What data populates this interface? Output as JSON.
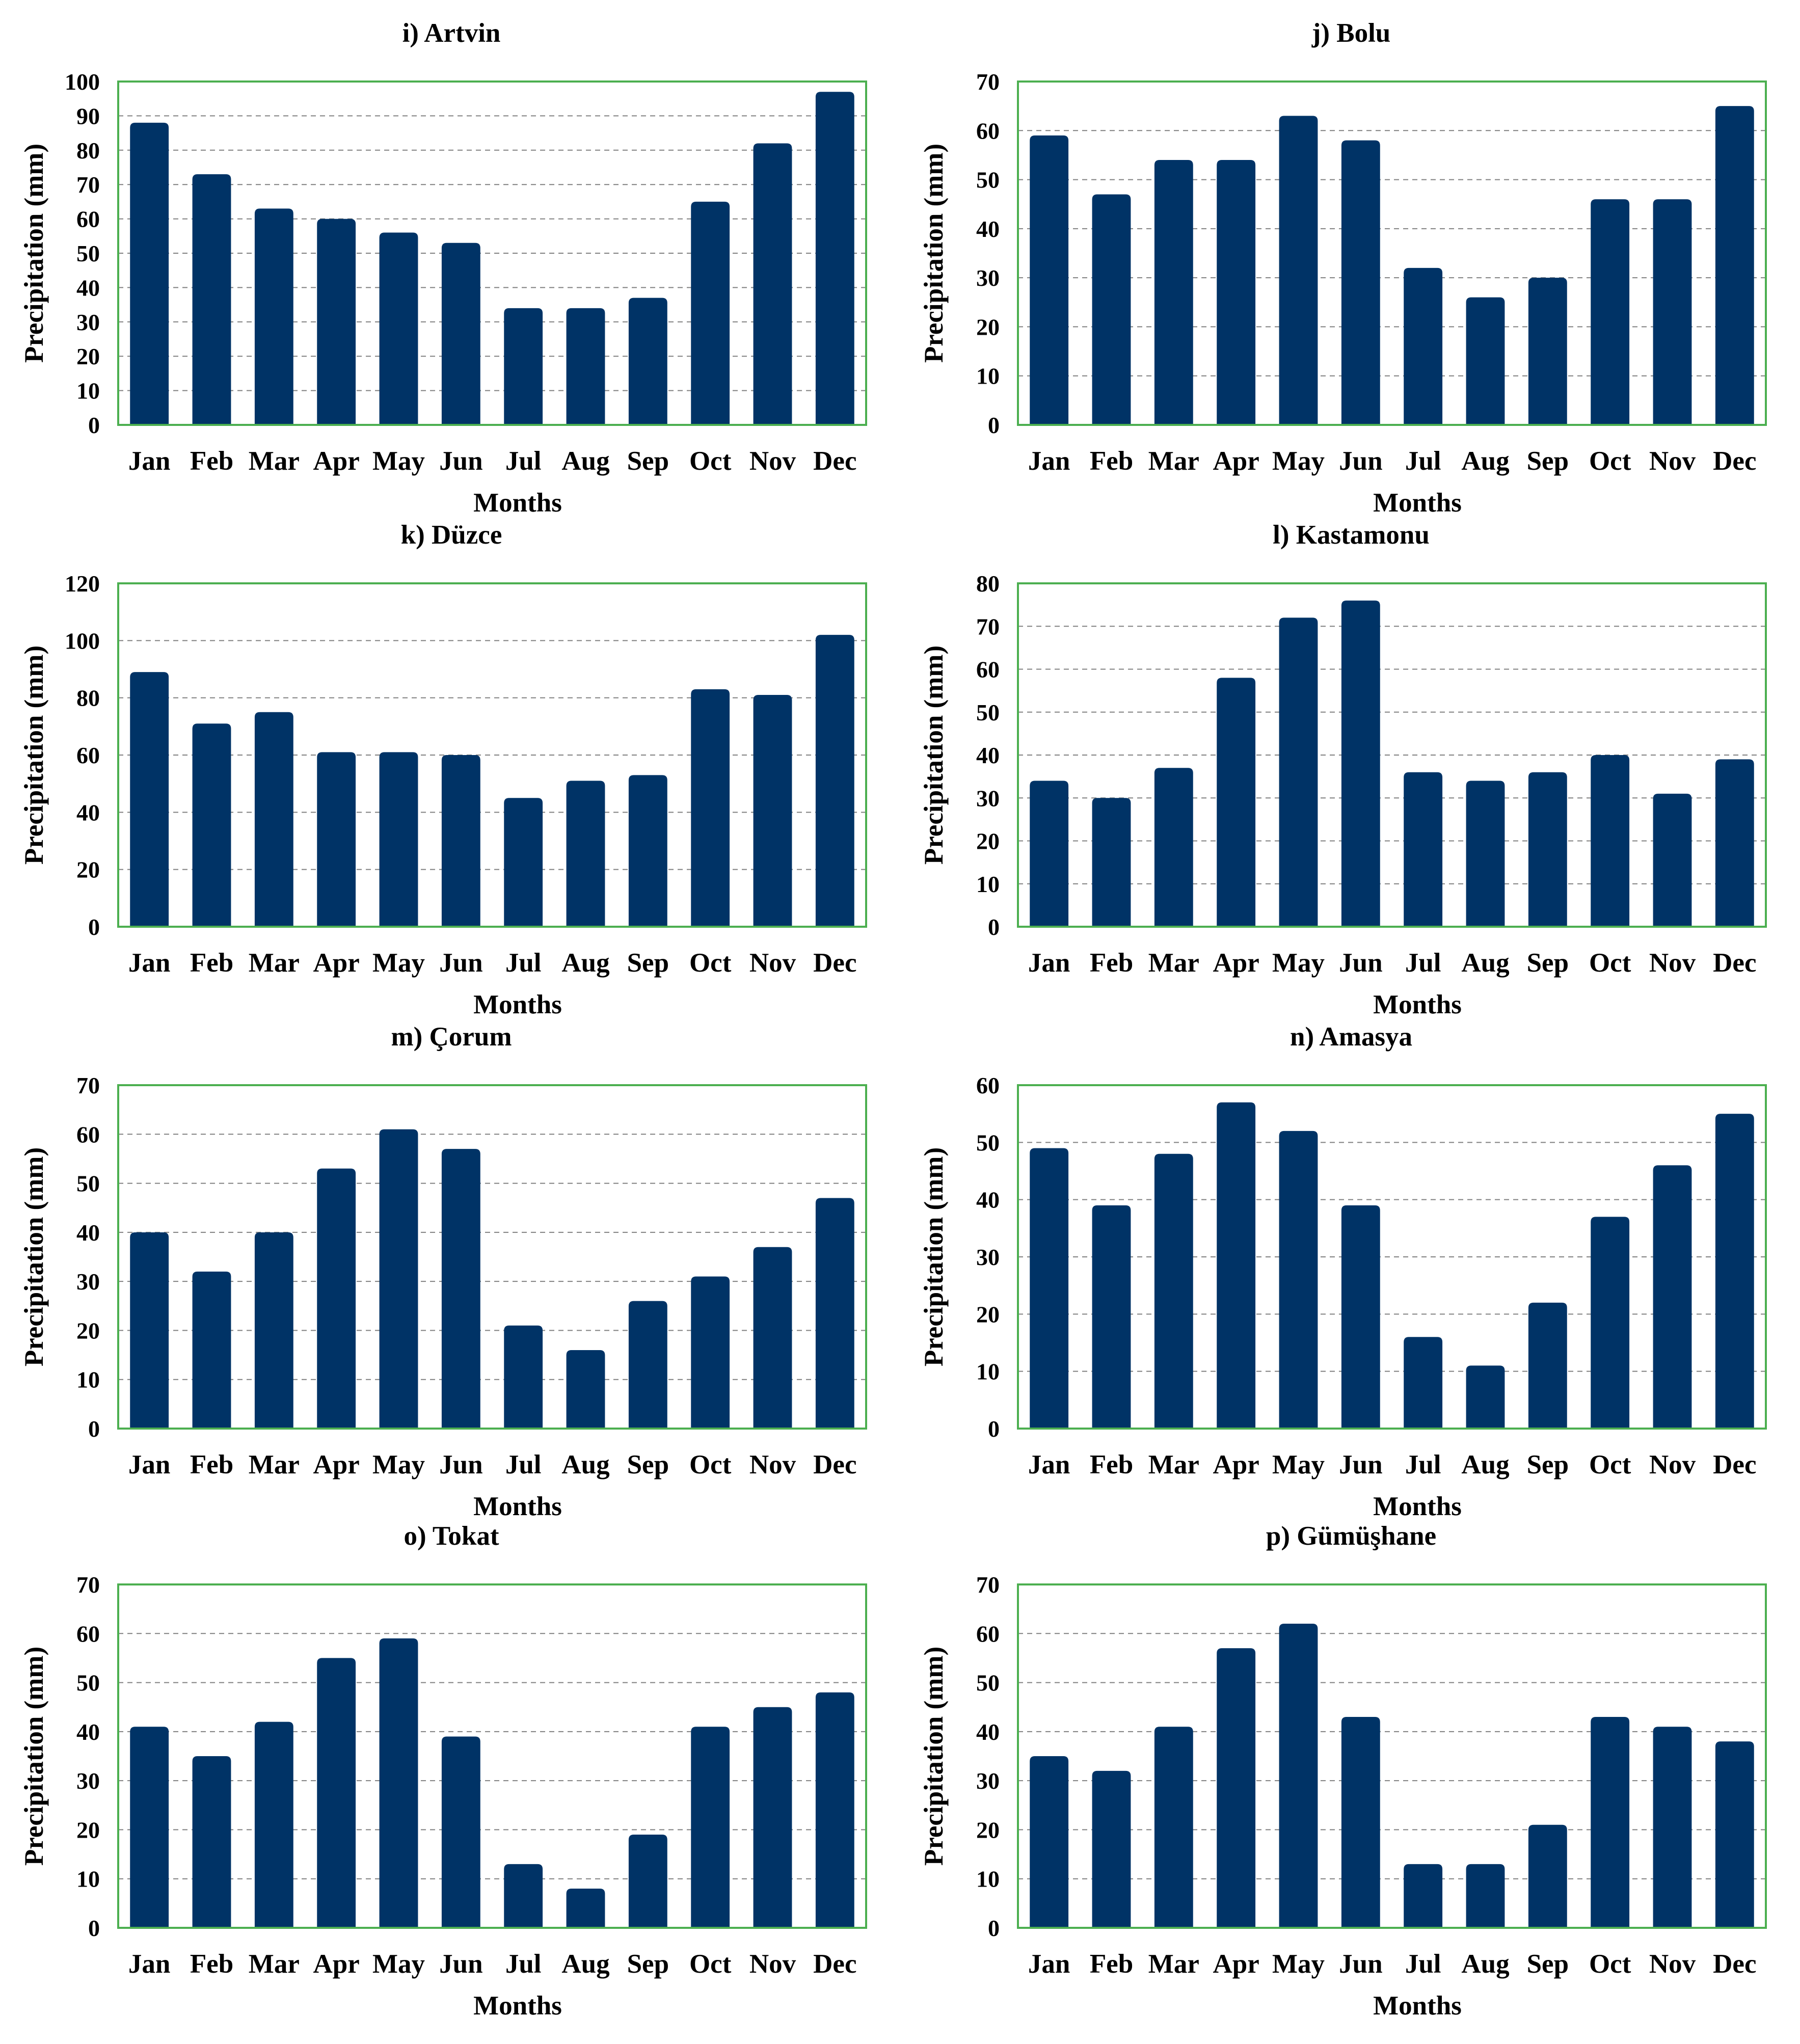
{
  "colors": {
    "bar": "#003366",
    "frame": "#4caf50",
    "grid": "#808080"
  },
  "chart_data": [
    {
      "type": "bar",
      "title": "i) Artvin",
      "xlabel": "Months",
      "ylabel": "Precipitation  (mm)",
      "categories": [
        "Jan",
        "Feb",
        "Mar",
        "Apr",
        "May",
        "Jun",
        "Jul",
        "Aug",
        "Sep",
        "Oct",
        "Nov",
        "Dec"
      ],
      "values": [
        88,
        73,
        63,
        60,
        56,
        53,
        34,
        34,
        37,
        65,
        82,
        97
      ],
      "ylim": [
        0,
        100
      ],
      "ystep": 10,
      "grid": true
    },
    {
      "type": "bar",
      "title": "j) Bolu",
      "xlabel": "Months",
      "ylabel": "Precipitation  (mm)",
      "categories": [
        "Jan",
        "Feb",
        "Mar",
        "Apr",
        "May",
        "Jun",
        "Jul",
        "Aug",
        "Sep",
        "Oct",
        "Nov",
        "Dec"
      ],
      "values": [
        59,
        47,
        54,
        54,
        63,
        58,
        32,
        26,
        30,
        46,
        46,
        65
      ],
      "ylim": [
        0,
        70
      ],
      "ystep": 10,
      "grid": true
    },
    {
      "type": "bar",
      "title": "k) Düzce",
      "xlabel": "Months",
      "ylabel": "Precipitation  (mm)",
      "categories": [
        "Jan",
        "Feb",
        "Mar",
        "Apr",
        "May",
        "Jun",
        "Jul",
        "Aug",
        "Sep",
        "Oct",
        "Nov",
        "Dec"
      ],
      "values": [
        89,
        71,
        75,
        61,
        61,
        60,
        45,
        51,
        53,
        83,
        81,
        102
      ],
      "ylim": [
        0,
        120
      ],
      "ystep": 20,
      "grid": true
    },
    {
      "type": "bar",
      "title": "l) Kastamonu",
      "xlabel": "Months",
      "ylabel": "Precipitation  (mm)",
      "categories": [
        "Jan",
        "Feb",
        "Mar",
        "Apr",
        "May",
        "Jun",
        "Jul",
        "Aug",
        "Sep",
        "Oct",
        "Nov",
        "Dec"
      ],
      "values": [
        34,
        30,
        37,
        58,
        72,
        76,
        36,
        34,
        36,
        40,
        31,
        39
      ],
      "ylim": [
        0,
        80
      ],
      "ystep": 10,
      "grid": true
    },
    {
      "type": "bar",
      "title": "m) Çorum",
      "xlabel": "Months",
      "ylabel": "Precipitation  (mm)",
      "categories": [
        "Jan",
        "Feb",
        "Mar",
        "Apr",
        "May",
        "Jun",
        "Jul",
        "Aug",
        "Sep",
        "Oct",
        "Nov",
        "Dec"
      ],
      "values": [
        40,
        32,
        40,
        53,
        61,
        57,
        21,
        16,
        26,
        31,
        37,
        47
      ],
      "ylim": [
        0,
        70
      ],
      "ystep": 10,
      "grid": true
    },
    {
      "type": "bar",
      "title": "n) Amasya",
      "xlabel": "Months",
      "ylabel": "Precipitation  (mm)",
      "categories": [
        "Jan",
        "Feb",
        "Mar",
        "Apr",
        "May",
        "Jun",
        "Jul",
        "Aug",
        "Sep",
        "Oct",
        "Nov",
        "Dec"
      ],
      "values": [
        49,
        39,
        48,
        57,
        52,
        39,
        16,
        11,
        22,
        37,
        46,
        55
      ],
      "ylim": [
        0,
        60
      ],
      "ystep": 10,
      "grid": true
    },
    {
      "type": "bar",
      "title": "o) Tokat",
      "xlabel": "Months",
      "ylabel": "Precipitation  (mm)",
      "categories": [
        "Jan",
        "Feb",
        "Mar",
        "Apr",
        "May",
        "Jun",
        "Jul",
        "Aug",
        "Sep",
        "Oct",
        "Nov",
        "Dec"
      ],
      "values": [
        41,
        35,
        42,
        55,
        59,
        39,
        13,
        8,
        19,
        41,
        45,
        48
      ],
      "ylim": [
        0,
        70
      ],
      "ystep": 10,
      "grid": true
    },
    {
      "type": "bar",
      "title": "p) Gümüşhane",
      "xlabel": "Months",
      "ylabel": "Precipitation  (mm)",
      "categories": [
        "Jan",
        "Feb",
        "Mar",
        "Apr",
        "May",
        "Jun",
        "Jul",
        "Aug",
        "Sep",
        "Oct",
        "Nov",
        "Dec"
      ],
      "values": [
        35,
        32,
        41,
        57,
        62,
        43,
        13,
        13,
        21,
        43,
        41,
        38
      ],
      "ylim": [
        0,
        70
      ],
      "ystep": 10,
      "grid": true
    }
  ]
}
